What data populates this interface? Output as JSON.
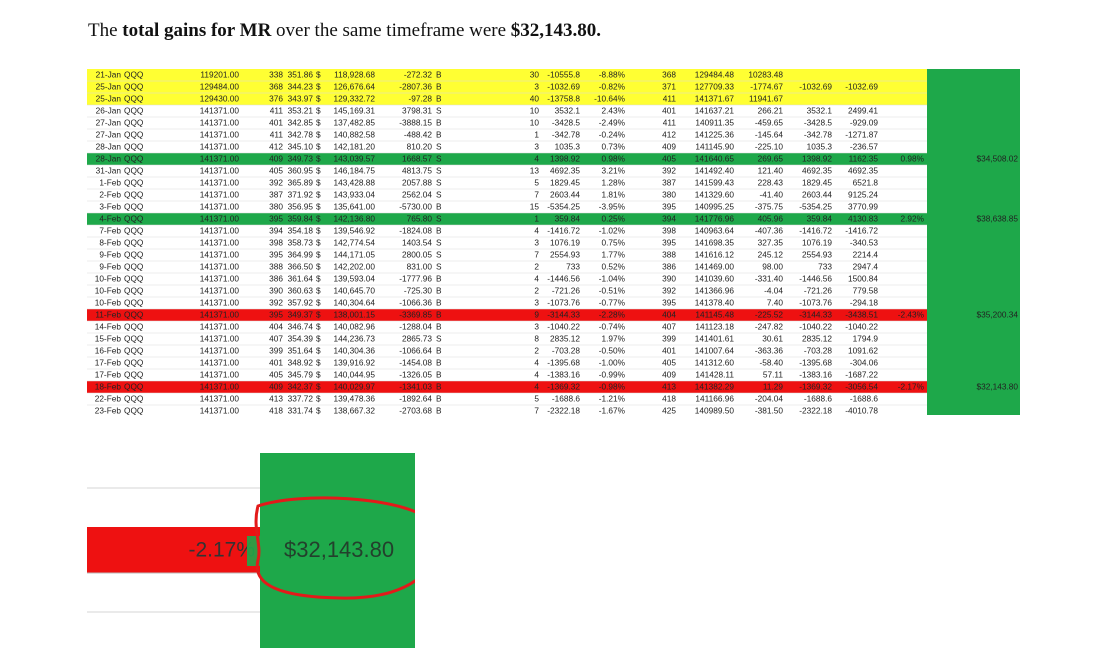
{
  "intro": {
    "segments": [
      {
        "text": "The ",
        "bold": false
      },
      {
        "text": "total gains for MR",
        "bold": true
      },
      {
        "text": " over the same timeframe were ",
        "bold": false
      },
      {
        "text": "$32,143.80.",
        "bold": true
      }
    ]
  },
  "sheet": {
    "total_fill": "#1ea84a",
    "rows": [
      {
        "fill": "#ffff33",
        "cells": [
          "21-Jan",
          "QQQ",
          "119201.00",
          "338",
          "351.86",
          "$",
          "118,928.68",
          "-272.32",
          "B",
          "30",
          "-10555.8",
          "-8.88%",
          "368",
          "129484.48",
          "10283.48"
        ]
      },
      {
        "fill": "#ffff33",
        "cells": [
          "25-Jan",
          "QQQ",
          "129484.00",
          "368",
          "344.23",
          "$",
          "126,676.64",
          "-2807.36",
          "B",
          "3",
          "-1032.69",
          "-0.82%",
          "371",
          "127709.33",
          "-1774.67",
          "-1032.69",
          "-1032.69"
        ]
      },
      {
        "fill": "#ffff33",
        "cells": [
          "25-Jan",
          "QQQ",
          "129430.00",
          "376",
          "343.97",
          "$",
          "129,332.72",
          "-97.28",
          "B",
          "40",
          "-13758.8",
          "-10.64%",
          "411",
          "141371.67",
          "11941.67"
        ]
      },
      {
        "cells": [
          "26-Jan",
          "QQQ",
          "141371.00",
          "411",
          "353.21",
          "$",
          "145,169.31",
          "3798.31",
          "S",
          "10",
          "3532.1",
          "2.43%",
          "401",
          "141637.21",
          "266.21",
          "3532.1",
          "2499.41"
        ]
      },
      {
        "cells": [
          "27-Jan",
          "QQQ",
          "141371.00",
          "401",
          "342.85",
          "$",
          "137,482.85",
          "-3888.15",
          "B",
          "10",
          "-3428.5",
          "-2.49%",
          "411",
          "140911.35",
          "-459.65",
          "-3428.5",
          "-929.09"
        ]
      },
      {
        "cells": [
          "27-Jan",
          "QQQ",
          "141371.00",
          "411",
          "342.78",
          "$",
          "140,882.58",
          "-488.42",
          "B",
          "1",
          "-342.78",
          "-0.24%",
          "412",
          "141225.36",
          "-145.64",
          "-342.78",
          "-1271.87"
        ]
      },
      {
        "cells": [
          "28-Jan",
          "QQQ",
          "141371.00",
          "412",
          "345.10",
          "$",
          "142,181.20",
          "810.20",
          "S",
          "3",
          "1035.3",
          "0.73%",
          "409",
          "141145.90",
          "-225.10",
          "1035.3",
          "-236.57"
        ]
      },
      {
        "fill": "#1ea84a",
        "cells": [
          "28-Jan",
          "QQQ",
          "141371.00",
          "409",
          "349.73",
          "$",
          "143,039.57",
          "1668.57",
          "S",
          "4",
          "1398.92",
          "0.98%",
          "405",
          "141640.65",
          "269.65",
          "1398.92",
          "1162.35",
          "0.98%",
          "$34,508.02"
        ]
      },
      {
        "cells": [
          "31-Jan",
          "QQQ",
          "141371.00",
          "405",
          "360.95",
          "$",
          "146,184.75",
          "4813.75",
          "S",
          "13",
          "4692.35",
          "3.21%",
          "392",
          "141492.40",
          "121.40",
          "4692.35",
          "4692.35"
        ]
      },
      {
        "cells": [
          "1-Feb",
          "QQQ",
          "141371.00",
          "392",
          "365.89",
          "$",
          "143,428.88",
          "2057.88",
          "S",
          "5",
          "1829.45",
          "1.28%",
          "387",
          "141599.43",
          "228.43",
          "1829.45",
          "6521.8"
        ]
      },
      {
        "cells": [
          "2-Feb",
          "QQQ",
          "141371.00",
          "387",
          "371.92",
          "$",
          "143,933.04",
          "2562.04",
          "S",
          "7",
          "2603.44",
          "1.81%",
          "380",
          "141329.60",
          "-41.40",
          "2603.44",
          "9125.24"
        ]
      },
      {
        "cells": [
          "3-Feb",
          "QQQ",
          "141371.00",
          "380",
          "356.95",
          "$",
          "135,641.00",
          "-5730.00",
          "B",
          "15",
          "-5354.25",
          "-3.95%",
          "395",
          "140995.25",
          "-375.75",
          "-5354.25",
          "3770.99"
        ]
      },
      {
        "fill": "#1ea84a",
        "cells": [
          "4-Feb",
          "QQQ",
          "141371.00",
          "395",
          "359.84",
          "$",
          "142,136.80",
          "765.80",
          "S",
          "1",
          "359.84",
          "0.25%",
          "394",
          "141776.96",
          "405.96",
          "359.84",
          "4130.83",
          "2.92%",
          "$38,638.85"
        ]
      },
      {
        "cells": [
          "7-Feb",
          "QQQ",
          "141371.00",
          "394",
          "354.18",
          "$",
          "139,546.92",
          "-1824.08",
          "B",
          "4",
          "-1416.72",
          "-1.02%",
          "398",
          "140963.64",
          "-407.36",
          "-1416.72",
          "-1416.72"
        ]
      },
      {
        "cells": [
          "8-Feb",
          "QQQ",
          "141371.00",
          "398",
          "358.73",
          "$",
          "142,774.54",
          "1403.54",
          "S",
          "3",
          "1076.19",
          "0.75%",
          "395",
          "141698.35",
          "327.35",
          "1076.19",
          "-340.53"
        ]
      },
      {
        "cells": [
          "9-Feb",
          "QQQ",
          "141371.00",
          "395",
          "364.99",
          "$",
          "144,171.05",
          "2800.05",
          "S",
          "7",
          "2554.93",
          "1.77%",
          "388",
          "141616.12",
          "245.12",
          "2554.93",
          "2214.4"
        ]
      },
      {
        "cells": [
          "9-Feb",
          "QQQ",
          "141371.00",
          "388",
          "366.50",
          "$",
          "142,202.00",
          "831.00",
          "S",
          "2",
          "733",
          "0.52%",
          "386",
          "141469.00",
          "98.00",
          "733",
          "2947.4"
        ]
      },
      {
        "cells": [
          "10-Feb",
          "QQQ",
          "141371.00",
          "386",
          "361.64",
          "$",
          "139,593.04",
          "-1777.96",
          "B",
          "4",
          "-1446.56",
          "-1.04%",
          "390",
          "141039.60",
          "-331.40",
          "-1446.56",
          "1500.84"
        ]
      },
      {
        "cells": [
          "10-Feb",
          "QQQ",
          "141371.00",
          "390",
          "360.63",
          "$",
          "140,645.70",
          "-725.30",
          "B",
          "2",
          "-721.26",
          "-0.51%",
          "392",
          "141366.96",
          "-4.04",
          "-721.26",
          "779.58"
        ]
      },
      {
        "cells": [
          "10-Feb",
          "QQQ",
          "141371.00",
          "392",
          "357.92",
          "$",
          "140,304.64",
          "-1066.36",
          "B",
          "3",
          "-1073.76",
          "-0.77%",
          "395",
          "141378.40",
          "7.40",
          "-1073.76",
          "-294.18"
        ]
      },
      {
        "fill": "#ee1111",
        "cells": [
          "11-Feb",
          "QQQ",
          "141371.00",
          "395",
          "349.37",
          "$",
          "138,001.15",
          "-3369.85",
          "B",
          "9",
          "-3144.33",
          "-2.28%",
          "404",
          "141145.48",
          "-225.52",
          "-3144.33",
          "-3438.51",
          "-2.43%",
          "$35,200.34"
        ]
      },
      {
        "cells": [
          "14-Feb",
          "QQQ",
          "141371.00",
          "404",
          "346.74",
          "$",
          "140,082.96",
          "-1288.04",
          "B",
          "3",
          "-1040.22",
          "-0.74%",
          "407",
          "141123.18",
          "-247.82",
          "-1040.22",
          "-1040.22"
        ]
      },
      {
        "cells": [
          "15-Feb",
          "QQQ",
          "141371.00",
          "407",
          "354.39",
          "$",
          "144,236.73",
          "2865.73",
          "S",
          "8",
          "2835.12",
          "1.97%",
          "399",
          "141401.61",
          "30.61",
          "2835.12",
          "1794.9"
        ]
      },
      {
        "cells": [
          "16-Feb",
          "QQQ",
          "141371.00",
          "399",
          "351.64",
          "$",
          "140,304.36",
          "-1066.64",
          "B",
          "2",
          "-703.28",
          "-0.50%",
          "401",
          "141007.64",
          "-363.36",
          "-703.28",
          "1091.62"
        ]
      },
      {
        "cells": [
          "17-Feb",
          "QQQ",
          "141371.00",
          "401",
          "348.92",
          "$",
          "139,916.92",
          "-1454.08",
          "B",
          "4",
          "-1395.68",
          "-1.00%",
          "405",
          "141312.60",
          "-58.40",
          "-1395.68",
          "-304.06"
        ]
      },
      {
        "cells": [
          "17-Feb",
          "QQQ",
          "141371.00",
          "405",
          "345.79",
          "$",
          "140,044.95",
          "-1326.05",
          "B",
          "4",
          "-1383.16",
          "-0.99%",
          "409",
          "141428.11",
          "57.11",
          "-1383.16",
          "-1687.22"
        ]
      },
      {
        "fill": "#ee1111",
        "cells": [
          "18-Feb",
          "QQQ",
          "141371.00",
          "409",
          "342.37",
          "$",
          "140,029.97",
          "-1341.03",
          "B",
          "4",
          "-1369.32",
          "-0.98%",
          "413",
          "141382.29",
          "11.29",
          "-1369.32",
          "-3056.54",
          "-2.17%",
          "$32,143.80"
        ]
      },
      {
        "cells": [
          "22-Feb",
          "QQQ",
          "141371.00",
          "413",
          "337.72",
          "$",
          "139,478.36",
          "-1892.64",
          "B",
          "5",
          "-1688.6",
          "-1.21%",
          "418",
          "141166.96",
          "-204.04",
          "-1688.6",
          "-1688.6"
        ]
      },
      {
        "cells": [
          "23-Feb",
          "QQQ",
          "141371.00",
          "418",
          "331.74",
          "$",
          "138,667.32",
          "-2703.68",
          "B",
          "7",
          "-2322.18",
          "-1.67%",
          "425",
          "140989.50",
          "-381.50",
          "-2322.18",
          "-4010.78"
        ]
      }
    ]
  },
  "zoom": {
    "pct": "-2.17%",
    "total": "$32,143.80"
  }
}
